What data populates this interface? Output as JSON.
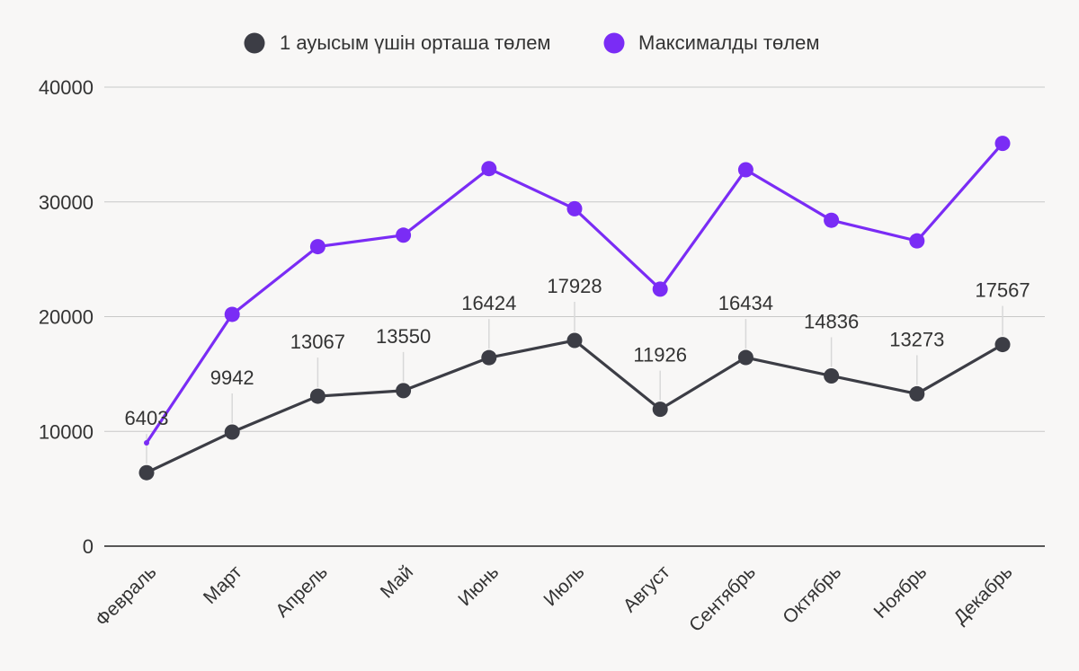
{
  "chart_data": {
    "type": "line",
    "categories": [
      "Февраль",
      "Март",
      "Апрель",
      "Май",
      "Июнь",
      "Июль",
      "Август",
      "Сентябрь",
      "Октябрь",
      "Ноябрь",
      "Декабрь"
    ],
    "series": [
      {
        "name": "1 ауысым үшін орташа төлем",
        "values": [
          6403,
          9942,
          13067,
          13550,
          16424,
          17928,
          11926,
          16434,
          14836,
          13273,
          17567
        ],
        "color": "#3c3d45",
        "data_labels": [
          "6403",
          "9942",
          "13067",
          "13550",
          "16424",
          "17928",
          "11926",
          "16434",
          "14836",
          "13273",
          "17567"
        ]
      },
      {
        "name": "Максималды төлем",
        "values": [
          9000,
          20200,
          26100,
          27100,
          32900,
          29400,
          22400,
          32800,
          28400,
          26600,
          35100
        ],
        "color": "#7a2cf5"
      }
    ],
    "y_ticks": [
      "0",
      "10000",
      "20000",
      "30000",
      "40000"
    ],
    "ylim": [
      0,
      40000
    ],
    "grid": true,
    "legend_position": "top-center",
    "title": "",
    "xlabel": "",
    "ylabel": ""
  }
}
